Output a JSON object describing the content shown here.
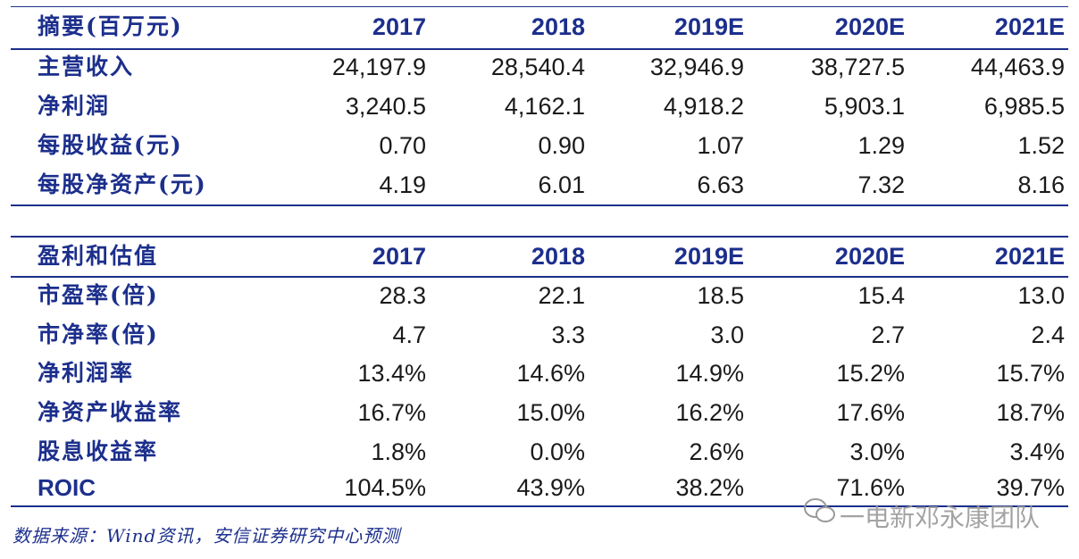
{
  "tables": [
    {
      "header": [
        "摘要(百万元)",
        "2017",
        "2018",
        "2019E",
        "2020E",
        "2021E"
      ],
      "rows": [
        [
          "主营收入",
          "24,197.9",
          "28,540.4",
          "32,946.9",
          "38,727.5",
          "44,463.9"
        ],
        [
          "净利润",
          "3,240.5",
          "4,162.1",
          "4,918.2",
          "5,903.1",
          "6,985.5"
        ],
        [
          "每股收益(元)",
          "0.70",
          "0.90",
          "1.07",
          "1.29",
          "1.52"
        ],
        [
          "每股净资产(元)",
          "4.19",
          "6.01",
          "6.63",
          "7.32",
          "8.16"
        ]
      ]
    },
    {
      "header": [
        "盈利和估值",
        "2017",
        "2018",
        "2019E",
        "2020E",
        "2021E"
      ],
      "rows": [
        [
          "市盈率(倍)",
          "28.3",
          "22.1",
          "18.5",
          "15.4",
          "13.0"
        ],
        [
          "市净率(倍)",
          "4.7",
          "3.3",
          "3.0",
          "2.7",
          "2.4"
        ],
        [
          "净利润率",
          "13.4%",
          "14.6%",
          "14.9%",
          "15.2%",
          "15.7%"
        ],
        [
          "净资产收益率",
          "16.7%",
          "15.0%",
          "16.2%",
          "17.6%",
          "18.7%"
        ],
        [
          "股息收益率",
          "1.8%",
          "0.0%",
          "2.6%",
          "3.0%",
          "3.4%"
        ],
        [
          "ROIC",
          "104.5%",
          "43.9%",
          "38.2%",
          "71.6%",
          "39.7%"
        ]
      ]
    }
  ],
  "source": "数据来源：Wind资讯，安信证券研究中心预测",
  "watermark": "一电新邓永康团队"
}
